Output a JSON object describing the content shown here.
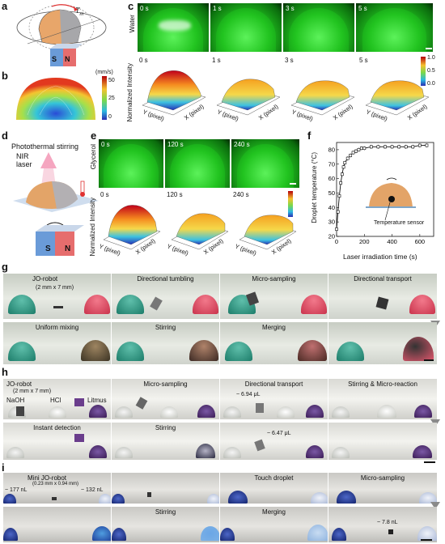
{
  "panels": {
    "a": "a",
    "b": "b",
    "c": "c",
    "d": "d",
    "e": "e",
    "f": "f",
    "g": "g",
    "h": "h",
    "i": "i"
  },
  "panel_a": {
    "torque_label": "T",
    "torque_sub": "m",
    "magnet_s": "S",
    "magnet_n": "N"
  },
  "panel_b": {
    "colorbar_unit": "(mm/s)",
    "colorbar_ticks": [
      "50",
      "25",
      "0"
    ]
  },
  "panel_c": {
    "row_label_top": "Water",
    "times": [
      "0 s",
      "1 s",
      "3 s",
      "5 s"
    ],
    "row_label_bottom": "Normalized Intensity",
    "colorbar_ticks": [
      "1.0",
      "0.5",
      "0.0"
    ],
    "x_axis_label": "X (pixel)",
    "y_axis_label": "Y (pixel)",
    "x_ticks": [
      "0",
      "1000"
    ],
    "y_ticks": [
      "500",
      "0"
    ]
  },
  "panel_d": {
    "title": "Photothermal stirring",
    "laser": "NIR\nlaser",
    "magnet_s": "S",
    "magnet_n": "N"
  },
  "panel_e": {
    "row_label_top": "Glycerol",
    "times": [
      "0 s",
      "120 s",
      "240 s"
    ],
    "row_label_bottom": "Normalized Intensity",
    "x_axis_label": "X (pixel)",
    "y_axis_label": "Y (pixel)",
    "x_ticks": [
      "0",
      "1000"
    ],
    "y_ticks": [
      "500",
      "0"
    ]
  },
  "panel_f": {
    "ylabel": "Droplet temperature (°C)",
    "xlabel": "Laser irradiation time (s)",
    "sensor_label": "Temperature sensor",
    "xticks": [
      "0",
      "200",
      "400",
      "600"
    ],
    "yticks": [
      "20",
      "30",
      "40",
      "50",
      "60",
      "70",
      "80"
    ]
  },
  "chart_data": {
    "type": "line",
    "xlabel": "Laser irradiation time (s)",
    "ylabel": "Droplet temperature (°C)",
    "xlim": [
      0,
      700
    ],
    "ylim": [
      20,
      85
    ],
    "x": [
      0,
      10,
      20,
      30,
      40,
      50,
      60,
      80,
      100,
      120,
      140,
      160,
      180,
      200,
      250,
      300,
      350,
      400,
      450,
      500,
      550,
      600,
      650
    ],
    "y": [
      25,
      37,
      48,
      57,
      63,
      68,
      71,
      74,
      76,
      78,
      79,
      80,
      81,
      81,
      82,
      82,
      82,
      82,
      82,
      82,
      82,
      83,
      83
    ]
  },
  "panel_g": {
    "row1": [
      "JO-robot",
      "Directional tumbling",
      "Micro-sampling",
      "Directional transport"
    ],
    "robot_size": "(2 mm x 7 mm)",
    "row2": [
      "Uniform mixing",
      "Stirring",
      "Merging"
    ]
  },
  "panel_h": {
    "row1": [
      "JO-robot",
      "Micro-sampling",
      "Directional transport",
      "Stirring & Micro-reaction"
    ],
    "robot_size": "(2 mm x 7 mm)",
    "reagents": [
      "NaOH",
      "HCl",
      "Litmus"
    ],
    "vol1": "~ 6.94 μL",
    "row2": [
      "Instant detection",
      "Stirring",
      ""
    ],
    "vol2": "~ 6.47 μL"
  },
  "panel_i": {
    "row1": [
      "Mini JO-robot",
      "Touch droplet",
      "Micro-sampling"
    ],
    "robot_size": "(0.23 mm x 0.94 mm)",
    "vol_left": "~ 177 nL",
    "vol_right": "~ 132 nL",
    "row2": [
      "Stirring",
      "Merging"
    ],
    "vol3": "~ 7.8 nL"
  },
  "colors": {
    "water_green": "#22c420",
    "teal_droplet": "#2a8f7d",
    "red_droplet": "#d9475c",
    "purple_litmus": "#3b1c55",
    "blue_droplet": "#1f3f9a"
  }
}
